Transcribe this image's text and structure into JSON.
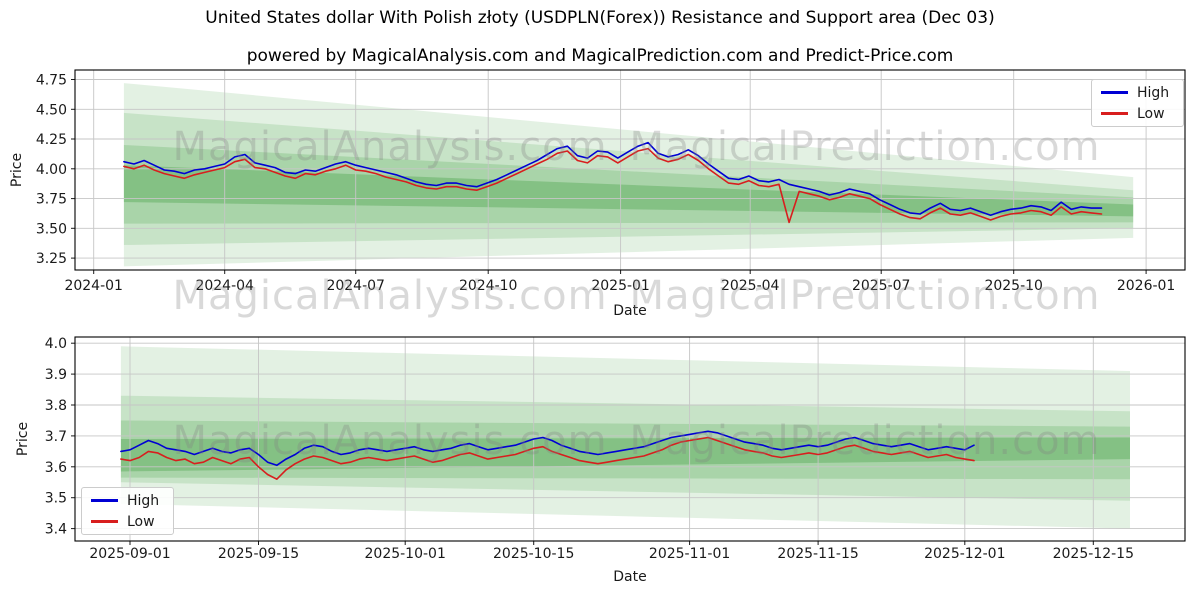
{
  "figure": {
    "title": "United States dollar With Polish złoty (USDPLN(Forex)) Resistance and Support area (Dec 03)",
    "subtitle": "powered by MagicalAnalysis.com and MagicalPrediction.com and Predict-Price.com"
  },
  "colors": {
    "high": "#0000d4",
    "low": "#d81e1e",
    "band": "#008000",
    "grid": "#c6c6c6",
    "spine": "#000000",
    "tick_text": "#1a1a1a",
    "watermark": "#808080"
  },
  "legend": {
    "high_label": "High",
    "low_label": "Low"
  },
  "watermarks": [
    "MagicalAnalysis.com",
    "MagicalPrediction.com"
  ],
  "chart_data": [
    {
      "id": "main-chart",
      "type": "line",
      "xlabel": "Date",
      "ylabel": "Price",
      "grid": true,
      "legend_position": "upper right",
      "xlim": [
        "2023-12-19",
        "2026-01-28"
      ],
      "ylim": [
        3.15,
        4.83
      ],
      "x_ticks": [
        {
          "label": "2024-01",
          "date": "2024-01-01"
        },
        {
          "label": "2024-04",
          "date": "2024-04-01"
        },
        {
          "label": "2024-07",
          "date": "2024-07-01"
        },
        {
          "label": "2024-10",
          "date": "2024-10-01"
        },
        {
          "label": "2025-01",
          "date": "2025-01-01"
        },
        {
          "label": "2025-04",
          "date": "2025-04-01"
        },
        {
          "label": "2025-07",
          "date": "2025-07-01"
        },
        {
          "label": "2025-10",
          "date": "2025-10-01"
        },
        {
          "label": "2026-01",
          "date": "2026-01-01"
        }
      ],
      "y_ticks": [
        {
          "label": "4.75",
          "value": 4.75
        },
        {
          "label": "4.50",
          "value": 4.5
        },
        {
          "label": "4.25",
          "value": 4.25
        },
        {
          "label": "4.00",
          "value": 4.0
        },
        {
          "label": "3.75",
          "value": 3.75
        },
        {
          "label": "3.50",
          "value": 3.5
        },
        {
          "label": "3.25",
          "value": 3.25
        }
      ],
      "bands": [
        {
          "x0": "2024-01-22",
          "x1": "2025-12-23",
          "top": [
            4.72,
            3.93
          ],
          "bottom": [
            3.18,
            3.42
          ],
          "opacity": 0.11
        },
        {
          "x0": "2024-01-22",
          "x1": "2025-12-23",
          "top": [
            4.47,
            3.82
          ],
          "bottom": [
            3.36,
            3.5
          ],
          "opacity": 0.12
        },
        {
          "x0": "2024-01-22",
          "x1": "2025-12-23",
          "top": [
            4.2,
            3.76
          ],
          "bottom": [
            3.54,
            3.55
          ],
          "opacity": 0.15
        },
        {
          "x0": "2024-01-22",
          "x1": "2025-12-23",
          "top": [
            4.03,
            3.7
          ],
          "bottom": [
            3.72,
            3.6
          ],
          "opacity": 0.22
        }
      ],
      "series": [
        {
          "name": "High",
          "color_key": "high",
          "start_date": "2024-01-22",
          "interval_days": 7,
          "values": [
            4.06,
            4.04,
            4.07,
            4.03,
            3.99,
            3.98,
            3.96,
            3.99,
            4.0,
            4.02,
            4.04,
            4.1,
            4.12,
            4.05,
            4.03,
            4.01,
            3.97,
            3.96,
            3.99,
            3.98,
            4.01,
            4.04,
            4.06,
            4.03,
            4.01,
            3.99,
            3.97,
            3.95,
            3.92,
            3.89,
            3.87,
            3.86,
            3.88,
            3.88,
            3.86,
            3.85,
            3.88,
            3.91,
            3.95,
            3.99,
            4.03,
            4.07,
            4.12,
            4.17,
            4.19,
            4.11,
            4.09,
            4.15,
            4.14,
            4.09,
            4.14,
            4.19,
            4.22,
            4.13,
            4.1,
            4.12,
            4.16,
            4.11,
            4.04,
            3.98,
            3.92,
            3.91,
            3.94,
            3.9,
            3.89,
            3.91,
            3.87,
            3.85,
            3.83,
            3.81,
            3.78,
            3.8,
            3.83,
            3.81,
            3.79,
            3.74,
            3.7,
            3.66,
            3.63,
            3.62,
            3.67,
            3.71,
            3.66,
            3.65,
            3.67,
            3.64,
            3.61,
            3.64,
            3.66,
            3.67,
            3.69,
            3.68,
            3.65,
            3.72,
            3.66,
            3.68,
            3.67,
            3.67
          ]
        },
        {
          "name": "Low",
          "color_key": "low",
          "start_date": "2024-01-22",
          "interval_days": 7,
          "values": [
            4.02,
            4.0,
            4.03,
            3.99,
            3.96,
            3.94,
            3.92,
            3.95,
            3.97,
            3.99,
            4.01,
            4.06,
            4.08,
            4.01,
            4.0,
            3.97,
            3.94,
            3.92,
            3.96,
            3.95,
            3.98,
            4.0,
            4.03,
            3.99,
            3.98,
            3.96,
            3.93,
            3.91,
            3.89,
            3.86,
            3.84,
            3.83,
            3.85,
            3.85,
            3.83,
            3.82,
            3.85,
            3.88,
            3.92,
            3.96,
            4.0,
            4.04,
            4.08,
            4.13,
            4.15,
            4.07,
            4.05,
            4.11,
            4.1,
            4.05,
            4.1,
            4.15,
            4.17,
            4.09,
            4.06,
            4.08,
            4.12,
            4.07,
            4.0,
            3.94,
            3.88,
            3.87,
            3.9,
            3.86,
            3.85,
            3.87,
            3.55,
            3.81,
            3.79,
            3.77,
            3.74,
            3.76,
            3.79,
            3.77,
            3.75,
            3.7,
            3.66,
            3.62,
            3.59,
            3.58,
            3.63,
            3.67,
            3.62,
            3.61,
            3.63,
            3.6,
            3.57,
            3.6,
            3.62,
            3.63,
            3.65,
            3.64,
            3.61,
            3.68,
            3.62,
            3.64,
            3.63,
            3.62
          ]
        }
      ]
    },
    {
      "id": "zoom-chart",
      "type": "line",
      "xlabel": "Date",
      "ylabel": "Price",
      "grid": true,
      "legend_position": "lower left",
      "xlim": [
        "2025-08-26",
        "2025-12-25"
      ],
      "ylim": [
        3.36,
        4.02
      ],
      "x_ticks": [
        {
          "label": "2025-09-01",
          "date": "2025-09-01"
        },
        {
          "label": "2025-09-15",
          "date": "2025-09-15"
        },
        {
          "label": "2025-10-01",
          "date": "2025-10-01"
        },
        {
          "label": "2025-10-15",
          "date": "2025-10-15"
        },
        {
          "label": "2025-11-01",
          "date": "2025-11-01"
        },
        {
          "label": "2025-11-15",
          "date": "2025-11-15"
        },
        {
          "label": "2025-12-01",
          "date": "2025-12-01"
        },
        {
          "label": "2025-12-15",
          "date": "2025-12-15"
        }
      ],
      "y_ticks": [
        {
          "label": "4.0",
          "value": 4.0
        },
        {
          "label": "3.9",
          "value": 3.9
        },
        {
          "label": "3.8",
          "value": 3.8
        },
        {
          "label": "3.7",
          "value": 3.7
        },
        {
          "label": "3.6",
          "value": 3.6
        },
        {
          "label": "3.5",
          "value": 3.5
        },
        {
          "label": "3.4",
          "value": 3.4
        }
      ],
      "bands": [
        {
          "x0": "2025-08-31",
          "x1": "2025-12-19",
          "top": [
            3.99,
            3.91
          ],
          "bottom": [
            3.48,
            3.4
          ],
          "opacity": 0.11
        },
        {
          "x0": "2025-08-31",
          "x1": "2025-12-19",
          "top": [
            3.83,
            3.78
          ],
          "bottom": [
            3.55,
            3.49
          ],
          "opacity": 0.12
        },
        {
          "x0": "2025-08-31",
          "x1": "2025-12-19",
          "top": [
            3.75,
            3.73
          ],
          "bottom": [
            3.565,
            3.56
          ],
          "opacity": 0.15
        },
        {
          "x0": "2025-08-31",
          "x1": "2025-12-19",
          "top": [
            3.69,
            3.695
          ],
          "bottom": [
            3.585,
            3.625
          ],
          "opacity": 0.22
        }
      ],
      "series": [
        {
          "name": "High",
          "color_key": "high",
          "start_date": "2025-08-31",
          "interval_days": 1,
          "values": [
            3.65,
            3.655,
            3.67,
            3.685,
            3.675,
            3.66,
            3.655,
            3.65,
            3.64,
            3.65,
            3.66,
            3.65,
            3.645,
            3.655,
            3.66,
            3.64,
            3.615,
            3.605,
            3.625,
            3.64,
            3.66,
            3.67,
            3.665,
            3.65,
            3.64,
            3.645,
            3.655,
            3.66,
            3.655,
            3.65,
            3.655,
            3.66,
            3.665,
            3.655,
            3.65,
            3.655,
            3.66,
            3.67,
            3.675,
            3.665,
            3.655,
            3.66,
            3.665,
            3.67,
            3.68,
            3.69,
            3.695,
            3.685,
            3.67,
            3.66,
            3.65,
            3.645,
            3.64,
            3.645,
            3.65,
            3.655,
            3.66,
            3.665,
            3.675,
            3.685,
            3.695,
            3.7,
            3.705,
            3.71,
            3.715,
            3.71,
            3.7,
            3.69,
            3.68,
            3.675,
            3.67,
            3.66,
            3.655,
            3.66,
            3.665,
            3.67,
            3.665,
            3.67,
            3.68,
            3.69,
            3.695,
            3.685,
            3.675,
            3.67,
            3.665,
            3.67,
            3.675,
            3.665,
            3.655,
            3.66,
            3.665,
            3.66,
            3.655,
            3.67
          ]
        },
        {
          "name": "Low",
          "color_key": "low",
          "start_date": "2025-08-31",
          "interval_days": 1,
          "values": [
            3.625,
            3.62,
            3.63,
            3.65,
            3.645,
            3.63,
            3.62,
            3.625,
            3.61,
            3.615,
            3.63,
            3.62,
            3.61,
            3.625,
            3.63,
            3.6,
            3.575,
            3.56,
            3.59,
            3.61,
            3.625,
            3.635,
            3.63,
            3.62,
            3.61,
            3.615,
            3.625,
            3.63,
            3.625,
            3.62,
            3.625,
            3.63,
            3.635,
            3.625,
            3.615,
            3.62,
            3.63,
            3.64,
            3.645,
            3.635,
            3.625,
            3.63,
            3.635,
            3.64,
            3.65,
            3.66,
            3.665,
            3.65,
            3.64,
            3.63,
            3.62,
            3.615,
            3.61,
            3.615,
            3.62,
            3.625,
            3.63,
            3.635,
            3.645,
            3.655,
            3.67,
            3.68,
            3.685,
            3.69,
            3.695,
            3.685,
            3.675,
            3.665,
            3.655,
            3.65,
            3.645,
            3.635,
            3.63,
            3.635,
            3.64,
            3.645,
            3.64,
            3.645,
            3.655,
            3.665,
            3.67,
            3.66,
            3.65,
            3.645,
            3.64,
            3.645,
            3.65,
            3.64,
            3.63,
            3.635,
            3.64,
            3.63,
            3.625,
            3.62
          ]
        }
      ]
    }
  ]
}
